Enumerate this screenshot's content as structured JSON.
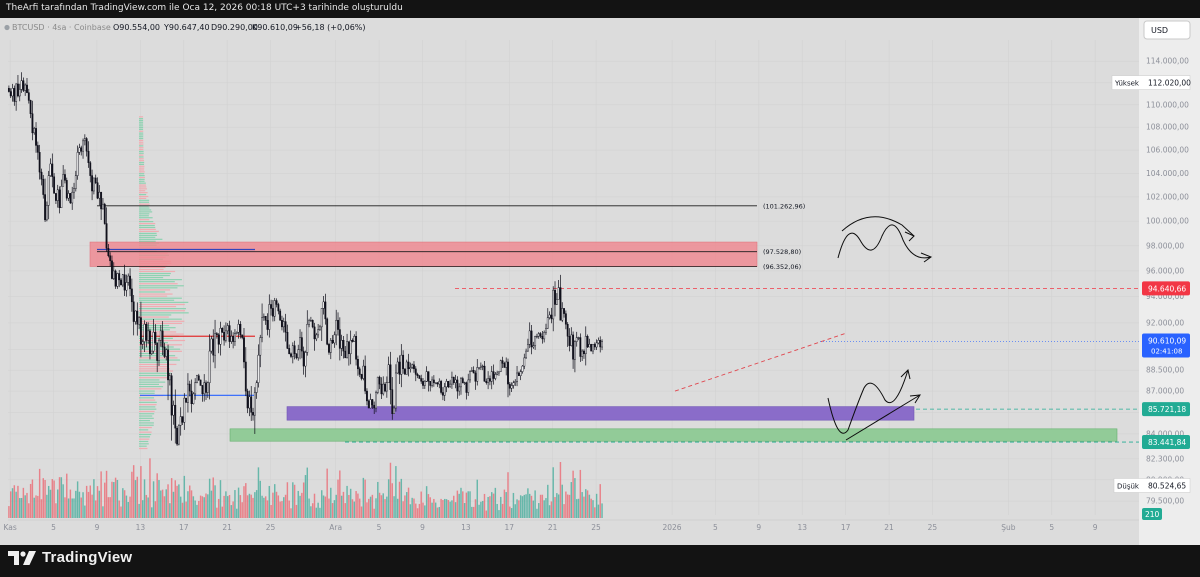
{
  "caption": "TheArfi tarafından TradingView.com ile Oca 12, 2026 00:18 UTC+3 tarihinde oluşturuldu",
  "brand": {
    "name": "TradingView"
  },
  "legend": {
    "symbol": "BTCUSD · 4sa · Coinbase",
    "open": "O90.554,00",
    "high": "Y90.647,40",
    "low": "D90.290,00",
    "close": "K90.610,09",
    "change": "+56,18 (+0,06%)"
  },
  "currency_button": "USD",
  "colors": {
    "up": "#089981",
    "down": "#f23645",
    "background": "#dcdcdc",
    "price_badge": "#2962ff",
    "resistance_badge": "#f23645",
    "support_badge": "#22ab94"
  },
  "chart_data": {
    "type": "candlestick",
    "ylim": [
      78600,
      116000
    ],
    "y_ticks": [
      {
        "v": 114000,
        "label": "114.000,00"
      },
      {
        "v": 112000,
        "label": "112.000,00"
      },
      {
        "v": 110000,
        "label": "110.000,00"
      },
      {
        "v": 108000,
        "label": "108.000,00"
      },
      {
        "v": 106000,
        "label": "106.000,00"
      },
      {
        "v": 104000,
        "label": "104.000,00"
      },
      {
        "v": 102000,
        "label": "102.000,00"
      },
      {
        "v": 100000,
        "label": "100.000,00"
      },
      {
        "v": 98000,
        "label": "98.000,00"
      },
      {
        "v": 96000,
        "label": "96.000,00"
      },
      {
        "v": 94000,
        "label": "94.000,00"
      },
      {
        "v": 92000,
        "label": "92.000,00"
      },
      {
        "v": 90000,
        "label": "90.000,00"
      },
      {
        "v": 88500,
        "label": "88.500,00"
      },
      {
        "v": 87000,
        "label": "87.000,00"
      },
      {
        "v": 85500,
        "label": "85.500,00"
      },
      {
        "v": 84000,
        "label": "84.000,00"
      },
      {
        "v": 82300,
        "label": "82.300,00"
      },
      {
        "v": 80900,
        "label": "80.900,00"
      },
      {
        "v": 79500,
        "label": "79.500,00"
      }
    ],
    "x_ticks": [
      {
        "label": "Kas",
        "x": 0.2
      },
      {
        "label": "5",
        "x": 4.2
      },
      {
        "label": "9",
        "x": 8.2
      },
      {
        "label": "13",
        "x": 12.2
      },
      {
        "label": "17",
        "x": 16.2
      },
      {
        "label": "21",
        "x": 20.2
      },
      {
        "label": "25",
        "x": 24.2
      },
      {
        "label": "Ara",
        "x": 30.2
      },
      {
        "label": "5",
        "x": 34.2
      },
      {
        "label": "9",
        "x": 38.2
      },
      {
        "label": "13",
        "x": 42.2
      },
      {
        "label": "17",
        "x": 46.2
      },
      {
        "label": "21",
        "x": 50.2
      },
      {
        "label": "25",
        "x": 54.2
      },
      {
        "label": "2026",
        "x": 61.2
      },
      {
        "label": "5",
        "x": 65.2
      },
      {
        "label": "9",
        "x": 69.2
      },
      {
        "label": "13",
        "x": 73.2
      },
      {
        "label": "17",
        "x": 77.2
      },
      {
        "label": "21",
        "x": 81.2
      },
      {
        "label": "25",
        "x": 85.2
      },
      {
        "label": "Şub",
        "x": 92.2
      },
      {
        "label": "5",
        "x": 96.2
      },
      {
        "label": "9",
        "x": 100.2
      }
    ],
    "x_unit": "days since Nov 1 2025 (4h candles)",
    "closes": [
      111200,
      110800,
      111500,
      110300,
      111900,
      110800,
      111400,
      112200,
      111300,
      111800,
      111100,
      110400,
      109200,
      107500,
      107900,
      106400,
      105800,
      104100,
      103500,
      102200,
      100100,
      101300,
      103800,
      104800,
      103700,
      102300,
      101700,
      102600,
      101100,
      102900,
      103900,
      103400,
      101900,
      102300,
      101500,
      102400,
      102700,
      103800,
      105800,
      106200,
      105900,
      106800,
      107000,
      105900,
      104900,
      103800,
      102500,
      103600,
      103200,
      101900,
      102400,
      101000,
      101400,
      99800,
      97800,
      97200,
      96800,
      95400,
      96000,
      94800,
      95800,
      95300,
      94900,
      95700,
      94500,
      95100,
      95600,
      94600,
      93600,
      92100,
      92900,
      91900,
      92400,
      90400,
      90600,
      91900,
      90700,
      91400,
      89700,
      89900,
      91300,
      90500,
      89200,
      90700,
      91400,
      90200,
      89500,
      90000,
      87800,
      88100,
      85300,
      86000,
      84400,
      83300,
      84600,
      85200,
      84800,
      86500,
      86200,
      87500,
      87000,
      86100,
      86800,
      87600,
      88100,
      87800,
      87400,
      86800,
      87600,
      86900,
      87600,
      89900,
      90800,
      89600,
      91200,
      91100,
      90400,
      91600,
      91300,
      90700,
      91400,
      91800,
      90600,
      91000,
      90600,
      91200,
      91300,
      91900,
      91100,
      90900,
      89100,
      87000,
      85800,
      86600,
      85500,
      85300,
      86900,
      87600,
      89600,
      90900,
      92400,
      92500,
      92200,
      91500,
      93400,
      93100,
      92500,
      93700,
      93400,
      92900,
      92200,
      91700,
      92100,
      91300,
      90100,
      89700,
      89500,
      90300,
      89700,
      89400,
      90000,
      90900,
      89900,
      88800,
      89800,
      91900,
      92200,
      92200,
      91700,
      90800,
      91100,
      91500,
      91700,
      93100,
      93600,
      92300,
      90400,
      89800,
      90700,
      90500,
      91100,
      92200,
      91500,
      90100,
      90700,
      89900,
      89400,
      90600,
      89700,
      90700,
      90600,
      91000,
      89300,
      88600,
      88200,
      87900,
      88800,
      87000,
      86300,
      85800,
      86400,
      86000,
      85800,
      86900,
      88000,
      87500,
      86800,
      87500,
      87000,
      87600,
      88900,
      87100,
      85400,
      85800,
      88300,
      89100,
      88200,
      89600,
      88600,
      88200,
      89100,
      88600,
      88700,
      88900,
      88600,
      88200,
      88100,
      87900,
      87700,
      87400,
      87700,
      88400,
      87700,
      87400,
      87800,
      87600,
      87600,
      87500,
      87700,
      86900,
      86700,
      87300,
      87700,
      87300,
      87500,
      88000,
      87600,
      87800,
      87000,
      87300,
      87900,
      87600,
      87600,
      86900,
      87800,
      88400,
      88500,
      88300,
      87700,
      88700,
      88700,
      88800,
      88800,
      87700,
      87600,
      87900,
      87700,
      88400,
      87900,
      88200,
      88300,
      88400,
      89200,
      89000,
      88700,
      89100,
      87500,
      87200,
      87400,
      87600,
      87700,
      88300,
      88100,
      88400,
      88800,
      89400,
      89900,
      90400,
      91400,
      90200,
      90300,
      91000,
      91000,
      91200,
      91000,
      90800,
      91300,
      91600,
      92400,
      92600,
      92300,
      94500,
      93400,
      93800,
      94700,
      92200,
      93100,
      92700,
      91900,
      91000,
      90300,
      91100,
      89300,
      90600,
      90900,
      90900,
      89500,
      89900,
      89700,
      91000,
      90200,
      90400,
      89900,
      90400,
      90200,
      90500,
      90700,
      90200,
      90600
    ],
    "price_lines": [
      {
        "value": 101262.96,
        "label": "(101.262,96)"
      },
      {
        "value": 97528.8,
        "label": "(97.528,80)"
      },
      {
        "value": 96352.06,
        "label": "(96.352,06)"
      }
    ],
    "zones": [
      {
        "name": "red-zone",
        "from": 96352,
        "to": 98300
      },
      {
        "name": "purple-zone",
        "from": 84950,
        "to": 85900
      },
      {
        "name": "green-zone",
        "from": 83500,
        "to": 84350
      }
    ],
    "axis_badges": [
      {
        "name": "resistance",
        "label": "94.640,66",
        "value": 94640.66
      },
      {
        "name": "support-1",
        "label": "85.721,18",
        "value": 85721.18
      },
      {
        "name": "support-2",
        "label": "83.441,84",
        "value": 83441.84
      }
    ],
    "current_price": {
      "label": "90.610,09",
      "countdown": "02:41:08",
      "value": 90610.09
    },
    "high_marker": {
      "label": "Yüksek",
      "value_label": "112.020,00",
      "value": 112020
    },
    "low_marker": {
      "label": "Düşük",
      "value_label": "80.524,65",
      "value": 80524.65
    },
    "volume_badge": "210"
  }
}
